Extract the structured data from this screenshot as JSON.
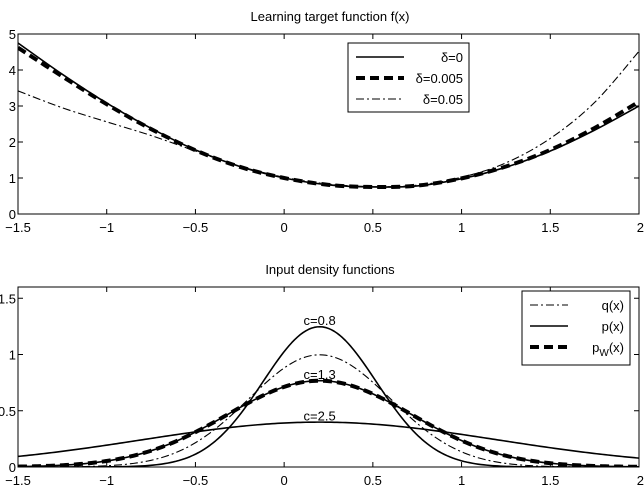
{
  "chart_data": [
    {
      "type": "line",
      "title": "Learning target function f(x)",
      "xlabel": "",
      "ylabel": "",
      "xlim": [
        -1.5,
        2
      ],
      "ylim": [
        0,
        5
      ],
      "xticks": [
        -1.5,
        -1,
        -0.5,
        0,
        0.5,
        1,
        1.5,
        2
      ],
      "yticks": [
        0,
        1,
        2,
        3,
        4,
        5
      ],
      "xtick_labels": [
        "−1.5",
        "−1",
        "−0.5",
        "0",
        "0.5",
        "1",
        "1.5",
        "2"
      ],
      "ytick_labels": [
        "0",
        "1",
        "2",
        "3",
        "4",
        "5"
      ],
      "grid": false,
      "legend_position": "top-right",
      "series": [
        {
          "name": "δ=0",
          "style": "solid",
          "x": [
            -1.5,
            -1.25,
            -1,
            -0.75,
            -0.5,
            -0.25,
            0,
            0.25,
            0.5,
            0.75,
            1,
            1.25,
            1.5,
            1.75,
            2
          ],
          "y": [
            4.75,
            3.88,
            3.08,
            2.38,
            1.78,
            1.32,
            1.0,
            0.81,
            0.75,
            0.78,
            0.98,
            1.3,
            1.75,
            2.33,
            3.0
          ]
        },
        {
          "name": "δ=0.005",
          "style": "thick-dashed",
          "x": [
            -1.5,
            -1.25,
            -1,
            -0.75,
            -0.5,
            -0.25,
            0,
            0.25,
            0.5,
            0.75,
            1,
            1.25,
            1.5,
            1.75,
            2
          ],
          "y": [
            4.62,
            3.82,
            3.05,
            2.36,
            1.77,
            1.31,
            1.0,
            0.81,
            0.75,
            0.79,
            0.99,
            1.32,
            1.78,
            2.39,
            3.12
          ]
        },
        {
          "name": "δ=0.05",
          "style": "dash-dot",
          "x": [
            -1.5,
            -1.25,
            -1,
            -0.75,
            -0.5,
            -0.25,
            0,
            0.25,
            0.5,
            0.75,
            1,
            1.25,
            1.5,
            1.75,
            2
          ],
          "y": [
            3.42,
            2.95,
            2.56,
            2.18,
            1.75,
            1.33,
            1.02,
            0.83,
            0.76,
            0.8,
            1.02,
            1.42,
            2.1,
            3.1,
            4.52
          ]
        }
      ]
    },
    {
      "type": "line",
      "title": "Input density functions",
      "xlabel": "",
      "ylabel": "",
      "xlim": [
        -1.5,
        2
      ],
      "ylim": [
        0,
        1.6
      ],
      "xticks": [
        -1.5,
        -1,
        -0.5,
        0,
        0.5,
        1,
        1.5,
        2
      ],
      "yticks": [
        0,
        0.5,
        1,
        1.5
      ],
      "xtick_labels": [
        "−1.5",
        "−1",
        "−0.5",
        "0",
        "0.5",
        "1",
        "1.5",
        "2"
      ],
      "ytick_labels": [
        "0",
        "0.5",
        "1",
        "1.5"
      ],
      "grid": false,
      "legend_position": "top-right",
      "legend": [
        {
          "label": "q(x)",
          "style": "dash-dot"
        },
        {
          "label": "p(x)",
          "style": "solid"
        },
        {
          "label": "p",
          "sub": "W",
          "suffix": "(x)",
          "style": "thick-dashed"
        }
      ],
      "annotations": [
        {
          "text": "c=0.8",
          "x": 0.2,
          "y": 1.3
        },
        {
          "text": "c=1.3",
          "x": 0.2,
          "y": 0.82
        },
        {
          "text": "c=2.5",
          "x": 0.2,
          "y": 0.45
        }
      ],
      "series": [
        {
          "legend": "q(x)",
          "style": "dash-dot",
          "kind": "gaussian",
          "mu": 0.2,
          "sigma": 0.4
        },
        {
          "legend": "p(x)",
          "style": "solid",
          "kind": "gaussian",
          "mu": 0.2,
          "sigma": 0.32,
          "label": "c=0.8"
        },
        {
          "legend": "p(x)",
          "style": "solid",
          "kind": "gaussian",
          "mu": 0.2,
          "sigma": 0.52,
          "label": "c=1.3"
        },
        {
          "legend": "p(x)",
          "style": "solid",
          "kind": "gaussian",
          "mu": 0.2,
          "sigma": 1.0,
          "label": "c=2.5"
        },
        {
          "legend": "pW(x)",
          "style": "thick-dashed",
          "kind": "gaussian",
          "mu": 0.2,
          "sigma": 0.52
        }
      ]
    }
  ]
}
